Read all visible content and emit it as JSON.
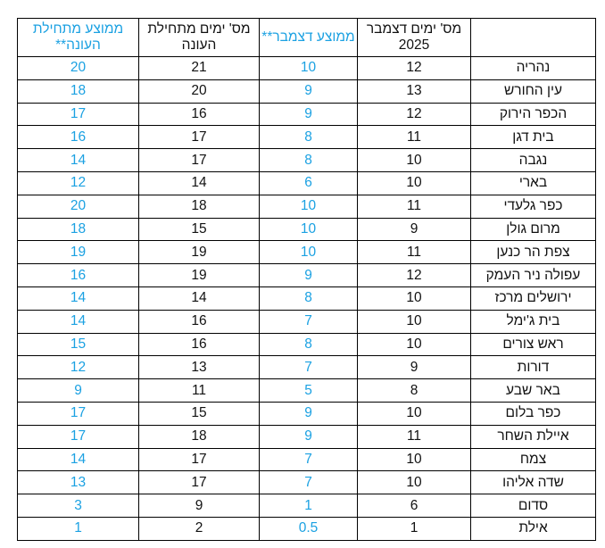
{
  "colors": {
    "accent_blue": "#1ba1e2",
    "text": "#111111",
    "border": "#000000"
  },
  "table": {
    "headers": {
      "station": "",
      "dec_days": "מס' ימים דצמבר 2025",
      "dec_avg": "ממוצע דצמבר**",
      "season_days": "מס' ימים מתחילת העונה",
      "season_avg": "ממוצע מתחילת העונה**"
    },
    "rows": [
      {
        "station": "נהריה",
        "dec_days": "12",
        "dec_avg": "10",
        "season_days": "21",
        "season_avg": "20"
      },
      {
        "station": "עין החורש",
        "dec_days": "13",
        "dec_avg": "9",
        "season_days": "20",
        "season_avg": "18"
      },
      {
        "station": "הכפר הירוק",
        "dec_days": "12",
        "dec_avg": "9",
        "season_days": "16",
        "season_avg": "17"
      },
      {
        "station": "בית דגן",
        "dec_days": "11",
        "dec_avg": "8",
        "season_days": "17",
        "season_avg": "16"
      },
      {
        "station": "נגבה",
        "dec_days": "10",
        "dec_avg": "8",
        "season_days": "17",
        "season_avg": "14"
      },
      {
        "station": "בארי",
        "dec_days": "10",
        "dec_avg": "6",
        "season_days": "14",
        "season_avg": "12"
      },
      {
        "station": "כפר גלעדי",
        "dec_days": "11",
        "dec_avg": "10",
        "season_days": "18",
        "season_avg": "20"
      },
      {
        "station": "מרום גולן",
        "dec_days": "9",
        "dec_avg": "10",
        "season_days": "15",
        "season_avg": "18"
      },
      {
        "station": "צפת הר כנען",
        "dec_days": "11",
        "dec_avg": "10",
        "season_days": "19",
        "season_avg": "19"
      },
      {
        "station": "עפולה ניר העמק",
        "dec_days": "12",
        "dec_avg": "9",
        "season_days": "19",
        "season_avg": "16"
      },
      {
        "station": "ירושלים מרכז",
        "dec_days": "10",
        "dec_avg": "8",
        "season_days": "14",
        "season_avg": "14"
      },
      {
        "station": "בית ג'ימל",
        "dec_days": "10",
        "dec_avg": "7",
        "season_days": "16",
        "season_avg": "14"
      },
      {
        "station": "ראש צורים",
        "dec_days": "10",
        "dec_avg": "8",
        "season_days": "16",
        "season_avg": "15"
      },
      {
        "station": "דורות",
        "dec_days": "9",
        "dec_avg": "7",
        "season_days": "13",
        "season_avg": "12"
      },
      {
        "station": "באר שבע",
        "dec_days": "8",
        "dec_avg": "5",
        "season_days": "11",
        "season_avg": "9"
      },
      {
        "station": "כפר בלום",
        "dec_days": "10",
        "dec_avg": "9",
        "season_days": "15",
        "season_avg": "17"
      },
      {
        "station": "איילת השחר",
        "dec_days": "11",
        "dec_avg": "9",
        "season_days": "18",
        "season_avg": "17"
      },
      {
        "station": "צמח",
        "dec_days": "10",
        "dec_avg": "7",
        "season_days": "17",
        "season_avg": "14"
      },
      {
        "station": "שדה אליהו",
        "dec_days": "10",
        "dec_avg": "7",
        "season_days": "17",
        "season_avg": "13"
      },
      {
        "station": "סדום",
        "dec_days": "6",
        "dec_avg": "1",
        "season_days": "9",
        "season_avg": "3"
      },
      {
        "station": "אילת",
        "dec_days": "1",
        "dec_avg": "0.5",
        "season_days": "2",
        "season_avg": "1"
      }
    ]
  }
}
